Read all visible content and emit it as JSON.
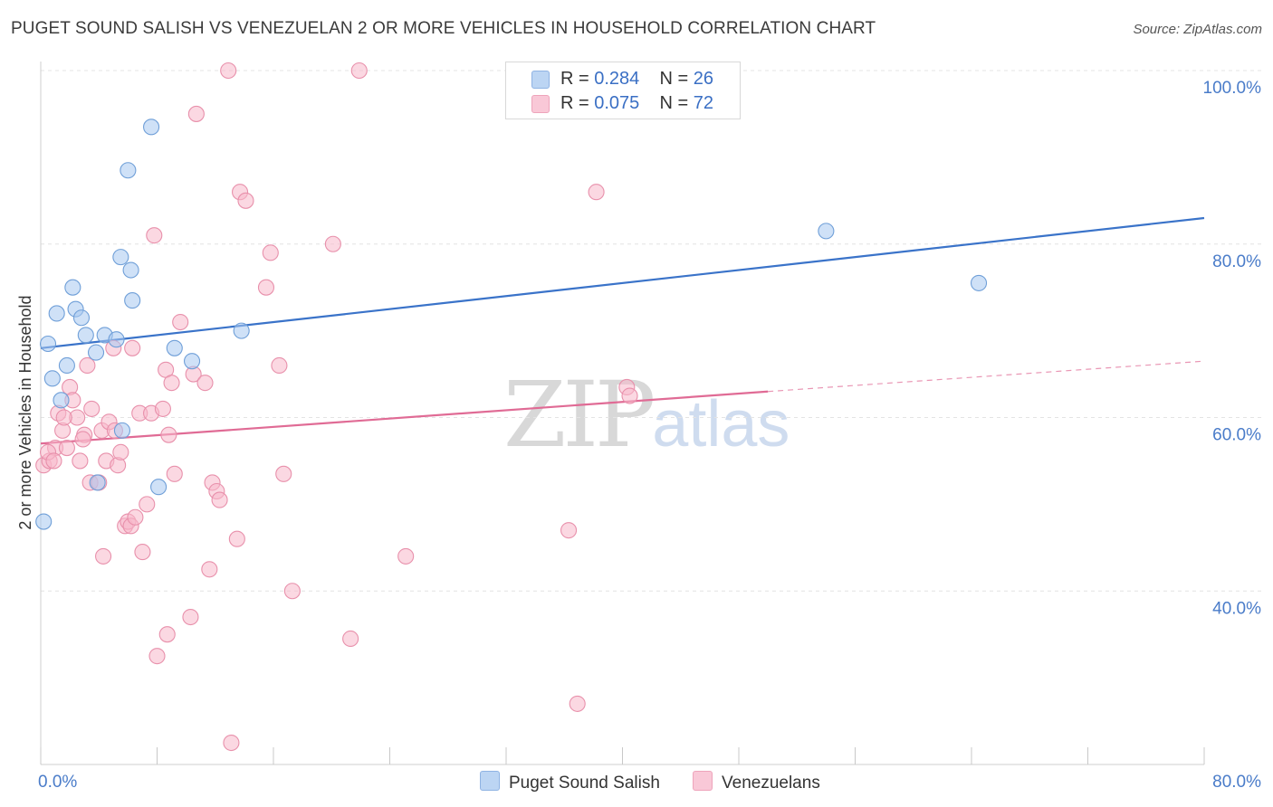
{
  "title": "PUGET SOUND SALISH VS VENEZUELAN 2 OR MORE VEHICLES IN HOUSEHOLD CORRELATION CHART",
  "source": "Source: ZipAtlas.com",
  "watermark": {
    "zip": "ZIP",
    "atlas": "atlas"
  },
  "legend": {
    "rows": [
      {
        "r_label": "R =",
        "r_value": "0.284",
        "n_label": "N =",
        "n_value": "26",
        "color": "#a8c8f0"
      },
      {
        "r_label": "R =",
        "r_value": "0.075",
        "n_label": "N =",
        "n_value": "72",
        "color": "#f7b8cb"
      }
    ]
  },
  "bottom_legend": [
    {
      "label": "Puget Sound Salish",
      "color": "#a8c8f0"
    },
    {
      "label": "Venezuelans",
      "color": "#f7b8cb"
    }
  ],
  "chart_data": {
    "type": "scatter",
    "title": "PUGET SOUND SALISH VS VENEZUELAN 2 OR MORE VEHICLES IN HOUSEHOLD CORRELATION CHART",
    "xlabel": "",
    "ylabel": "2 or more Vehicles in Household",
    "xlim": [
      0,
      80
    ],
    "ylim": [
      20,
      100
    ],
    "x_tick_labels": [
      "0.0%",
      "80.0%"
    ],
    "y_ticks": [
      40,
      60,
      80,
      100
    ],
    "y_tick_labels": [
      "40.0%",
      "60.0%",
      "80.0%",
      "100.0%"
    ],
    "grid": true,
    "legend_position": "top-center",
    "series": [
      {
        "name": "Puget Sound Salish",
        "color": "#a8c8f0",
        "stroke": "#6f9fd8",
        "trend": {
          "x": [
            0,
            80
          ],
          "y": [
            68.0,
            83.0
          ],
          "color": "#3a73c9"
        },
        "points": [
          [
            0.2,
            48
          ],
          [
            0.5,
            68.5
          ],
          [
            0.8,
            64.5
          ],
          [
            1.1,
            72
          ],
          [
            1.4,
            62
          ],
          [
            1.8,
            66
          ],
          [
            2.2,
            75
          ],
          [
            2.4,
            72.5
          ],
          [
            2.8,
            71.5
          ],
          [
            3.1,
            69.5
          ],
          [
            3.8,
            67.5
          ],
          [
            4.4,
            69.5
          ],
          [
            5.2,
            69
          ],
          [
            3.9,
            52.5
          ],
          [
            5.5,
            78.5
          ],
          [
            6.2,
            77
          ],
          [
            6.0,
            88.5
          ],
          [
            6.3,
            73.5
          ],
          [
            7.6,
            93.5
          ],
          [
            8.1,
            52
          ],
          [
            9.2,
            68
          ],
          [
            10.4,
            66.5
          ],
          [
            5.6,
            58.5
          ],
          [
            13.8,
            70
          ],
          [
            54.0,
            81.5
          ],
          [
            64.5,
            75.5
          ]
        ]
      },
      {
        "name": "Venezuelans",
        "color": "#f7b8cb",
        "stroke": "#e890ab",
        "trend": {
          "x": [
            0,
            50
          ],
          "y": [
            57.0,
            63.0
          ],
          "color": "#e06b95",
          "dash_to": [
            80,
            66.5
          ]
        },
        "points": [
          [
            0.2,
            54.5
          ],
          [
            0.6,
            55
          ],
          [
            1.0,
            56.5
          ],
          [
            1.2,
            60.5
          ],
          [
            1.5,
            58.5
          ],
          [
            1.8,
            56.5
          ],
          [
            2.0,
            63.5
          ],
          [
            2.2,
            62
          ],
          [
            2.5,
            60
          ],
          [
            2.7,
            55
          ],
          [
            3.0,
            58
          ],
          [
            3.2,
            66
          ],
          [
            3.4,
            52.5
          ],
          [
            3.5,
            61
          ],
          [
            4.0,
            52.5
          ],
          [
            4.2,
            58.5
          ],
          [
            4.3,
            44
          ],
          [
            4.5,
            55
          ],
          [
            4.7,
            59.5
          ],
          [
            5.0,
            68
          ],
          [
            5.1,
            58.5
          ],
          [
            5.3,
            54.5
          ],
          [
            5.5,
            56
          ],
          [
            5.8,
            47.5
          ],
          [
            6.0,
            48
          ],
          [
            6.2,
            47.5
          ],
          [
            6.3,
            68
          ],
          [
            6.5,
            48.5
          ],
          [
            6.8,
            60.5
          ],
          [
            7.0,
            44.5
          ],
          [
            7.3,
            50
          ],
          [
            7.6,
            60.5
          ],
          [
            7.8,
            81
          ],
          [
            8.0,
            32.5
          ],
          [
            8.4,
            61
          ],
          [
            8.6,
            65.5
          ],
          [
            8.7,
            35
          ],
          [
            8.8,
            58
          ],
          [
            9.0,
            64
          ],
          [
            9.2,
            53.5
          ],
          [
            9.6,
            71
          ],
          [
            10.3,
            37
          ],
          [
            10.5,
            65
          ],
          [
            10.7,
            95
          ],
          [
            11.3,
            64
          ],
          [
            11.6,
            42.5
          ],
          [
            11.8,
            52.5
          ],
          [
            12.1,
            51.5
          ],
          [
            12.3,
            50.5
          ],
          [
            12.9,
            100
          ],
          [
            13.1,
            22.5
          ],
          [
            13.5,
            46
          ],
          [
            13.7,
            86
          ],
          [
            14.1,
            85
          ],
          [
            15.5,
            75
          ],
          [
            15.8,
            79
          ],
          [
            16.4,
            66
          ],
          [
            16.7,
            53.5
          ],
          [
            17.3,
            40
          ],
          [
            20.1,
            80
          ],
          [
            21.3,
            34.5
          ],
          [
            21.9,
            100
          ],
          [
            25.1,
            44
          ],
          [
            36.3,
            47
          ],
          [
            36.9,
            27
          ],
          [
            38.2,
            86
          ],
          [
            40.3,
            63.5
          ],
          [
            40.5,
            62.5
          ],
          [
            0.5,
            56
          ],
          [
            0.9,
            55
          ],
          [
            1.6,
            60
          ],
          [
            2.9,
            57.5
          ]
        ]
      }
    ]
  }
}
